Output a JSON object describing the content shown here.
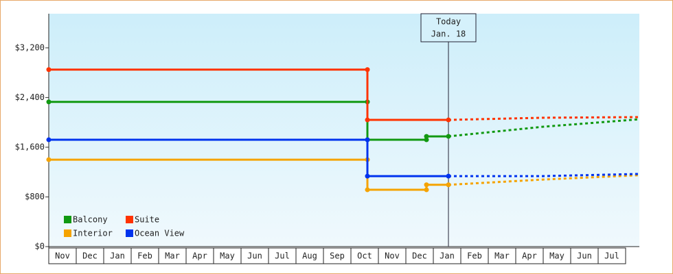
{
  "chart_data": {
    "type": "step-line",
    "xlim": [
      0,
      21.5
    ],
    "xticks": [
      {
        "value": 0.5,
        "label": "Nov"
      },
      {
        "value": 1.5,
        "label": "Dec"
      },
      {
        "value": 2.5,
        "label": "Jan"
      },
      {
        "value": 3.5,
        "label": "Feb"
      },
      {
        "value": 4.5,
        "label": "Mar"
      },
      {
        "value": 5.5,
        "label": "Apr"
      },
      {
        "value": 6.5,
        "label": "May"
      },
      {
        "value": 7.5,
        "label": "Jun"
      },
      {
        "value": 8.5,
        "label": "Jul"
      },
      {
        "value": 9.5,
        "label": "Aug"
      },
      {
        "value": 10.5,
        "label": "Sep"
      },
      {
        "value": 11.5,
        "label": "Oct"
      },
      {
        "value": 12.5,
        "label": "Nov"
      },
      {
        "value": 13.5,
        "label": "Dec"
      },
      {
        "value": 14.5,
        "label": "Jan"
      },
      {
        "value": 15.5,
        "label": "Feb"
      },
      {
        "value": 16.5,
        "label": "Mar"
      },
      {
        "value": 17.5,
        "label": "Apr"
      },
      {
        "value": 18.5,
        "label": "May"
      },
      {
        "value": 19.5,
        "label": "Jun"
      },
      {
        "value": 20.5,
        "label": "Jul"
      }
    ],
    "ylim": [
      0,
      3750
    ],
    "yticks": [
      {
        "value": 0,
        "label": "$0"
      },
      {
        "value": 800,
        "label": "$800"
      },
      {
        "value": 1600,
        "label": "$1,600"
      },
      {
        "value": 2400,
        "label": "$2,400"
      },
      {
        "value": 3200,
        "label": "$3,200"
      }
    ],
    "today": {
      "x": 14.55,
      "label": [
        "Today",
        "Jan. 18"
      ]
    },
    "series": [
      {
        "name": "Balcony",
        "color": "#119911",
        "x": [
          0,
          11.6,
          11.6,
          13.75,
          13.75,
          14.55
        ],
        "values": [
          2330,
          2330,
          1720,
          1720,
          1775,
          1775
        ],
        "projection": {
          "x": [
            14.55,
            18,
            21.5
          ],
          "values": [
            1775,
            1930,
            2050
          ]
        }
      },
      {
        "name": "Suite",
        "color": "#ff3300",
        "x": [
          0,
          11.6,
          11.6,
          14.55
        ],
        "values": [
          2850,
          2850,
          2040,
          2040
        ],
        "projection": {
          "x": [
            14.55,
            18,
            21.5
          ],
          "values": [
            2040,
            2075,
            2085
          ]
        }
      },
      {
        "name": "Interior",
        "color": "#f5a300",
        "x": [
          0,
          11.6,
          11.6,
          13.75,
          13.75,
          14.55
        ],
        "values": [
          1400,
          1400,
          915,
          915,
          995,
          995
        ],
        "projection": {
          "x": [
            14.55,
            18,
            21.5
          ],
          "values": [
            995,
            1080,
            1150
          ]
        }
      },
      {
        "name": "Ocean View",
        "color": "#0033ee",
        "x": [
          0,
          11.6,
          11.6,
          14.55
        ],
        "values": [
          1720,
          1720,
          1135,
          1135
        ],
        "projection": {
          "x": [
            14.55,
            18,
            21.5
          ],
          "values": [
            1135,
            1135,
            1170
          ]
        }
      }
    ]
  }
}
